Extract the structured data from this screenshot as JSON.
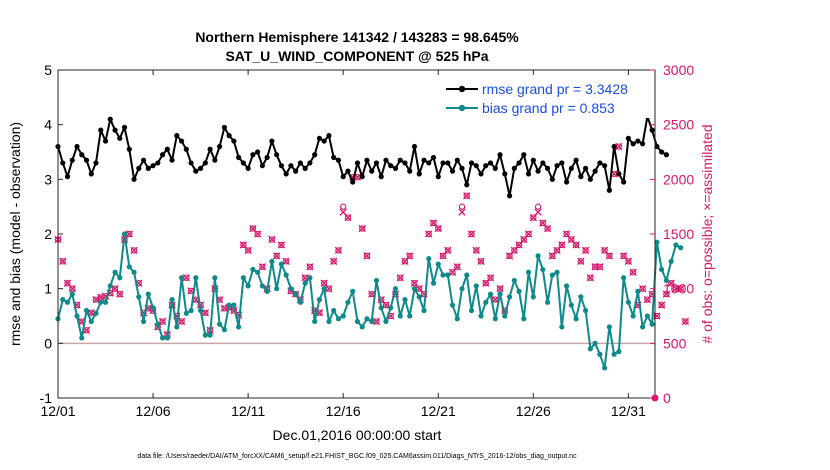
{
  "chart_data": {
    "type": "line",
    "title_line1": "Northern Hemisphere 141342 / 143283 = 98.645%",
    "title_line2": "SAT_U_WIND_COMPONENT @ 525 hPa",
    "xlabel": "Dec.01,2016 00:00:00 start",
    "ylabel": "rmse and bias (model - observation)",
    "y2label": "# of obs: o=possible; ×=assimilated",
    "footnote": "data file: /Users/raeder/DAI/ATM_forcXX/CAM6_setup/f.e21.FHIST_BGC.f09_025.CAM6assim.011/Diags_NTrS_2016-12/obs_diag_output.nc",
    "xlim": [
      0,
      31.4
    ],
    "ylim": [
      -1,
      5
    ],
    "y2lim": [
      0,
      3000
    ],
    "x_ticks": [
      0,
      5,
      10,
      15,
      20,
      25,
      30
    ],
    "x_tick_labels": [
      "12/01",
      "12/06",
      "12/11",
      "12/16",
      "12/21",
      "12/26",
      "12/31"
    ],
    "y_ticks": [
      -1,
      0,
      1,
      2,
      3,
      4,
      5
    ],
    "y_tick_labels": [
      "-1",
      "0",
      "1",
      "2",
      "3",
      "4",
      "5"
    ],
    "y2_ticks": [
      0,
      500,
      1000,
      1500,
      2000,
      2500,
      3000
    ],
    "y2_tick_labels": [
      "0",
      "500",
      "1000",
      "1500",
      "2000",
      "2500",
      "3000"
    ],
    "zero_line": 0,
    "step_days": 0.25,
    "legend": {
      "rmse_label": "rmse grand pr = 3.3428",
      "bias_label": "bias grand pr = 0.853",
      "placement": "top-right"
    },
    "colors": {
      "rmse": "#000000",
      "bias": "#0f8a8a",
      "obs": "#d6176a",
      "legend_text": "#1a4fe0",
      "zero_line": "#c6a6a6"
    },
    "series": [
      {
        "name": "rmse grand pr",
        "values": [
          3.6,
          3.3,
          3.05,
          3.35,
          3.6,
          3.45,
          3.35,
          3.1,
          3.3,
          3.9,
          3.7,
          4.1,
          3.9,
          3.75,
          3.95,
          3.55,
          3.0,
          3.2,
          3.35,
          3.2,
          3.25,
          3.3,
          3.45,
          3.55,
          3.35,
          3.8,
          3.7,
          3.55,
          3.3,
          3.15,
          3.2,
          3.3,
          3.55,
          3.35,
          3.6,
          3.95,
          3.8,
          3.7,
          3.4,
          3.3,
          3.2,
          3.45,
          3.5,
          3.25,
          3.4,
          3.7,
          3.45,
          3.25,
          3.1,
          3.25,
          3.15,
          3.3,
          3.2,
          3.3,
          3.45,
          3.75,
          3.7,
          3.8,
          3.4,
          3.35,
          3.05,
          3.15,
          2.95,
          3.3,
          3.05,
          3.35,
          3.15,
          3.3,
          3.05,
          3.35,
          3.25,
          3.2,
          3.35,
          3.3,
          3.15,
          3.6,
          3.1,
          3.35,
          3.3,
          3.4,
          3.05,
          3.3,
          3.3,
          3.15,
          3.35,
          3.2,
          2.9,
          3.3,
          3.25,
          3.1,
          3.25,
          3.3,
          3.2,
          3.45,
          3.1,
          2.7,
          3.2,
          3.3,
          3.45,
          3.1,
          3.35,
          3.15,
          3.3,
          3.2,
          3.0,
          3.25,
          3.3,
          2.95,
          3.2,
          3.35,
          3.05,
          3.2,
          3.0,
          3.15,
          3.3,
          3.25,
          2.8,
          3.6,
          3.1,
          2.95,
          3.75,
          3.65,
          3.7,
          3.65,
          4.15,
          3.9,
          3.6,
          3.5,
          3.45
        ],
        "color": "#000000"
      },
      {
        "name": "bias grand pr",
        "values": [
          0.45,
          0.8,
          0.75,
          0.9,
          0.5,
          0.1,
          0.6,
          0.4,
          0.55,
          0.75,
          0.75,
          1.05,
          1.3,
          1.2,
          2.0,
          1.4,
          1.3,
          0.85,
          0.4,
          0.9,
          0.65,
          0.35,
          0.1,
          0.1,
          0.8,
          0.3,
          1.2,
          0.55,
          0.6,
          1.2,
          0.6,
          0.15,
          0.15,
          1.2,
          0.35,
          0.25,
          0.7,
          0.7,
          0.3,
          1.2,
          1.05,
          1.35,
          1.3,
          1.05,
          0.95,
          1.5,
          1.0,
          1.45,
          1.25,
          1.0,
          0.9,
          0.75,
          1.1,
          1.2,
          0.4,
          0.8,
          1.0,
          0.4,
          0.6,
          0.45,
          0.5,
          0.75,
          0.95,
          0.4,
          0.3,
          0.45,
          0.4,
          1.15,
          0.65,
          0.4,
          0.65,
          1.0,
          0.5,
          0.8,
          0.5,
          1.0,
          0.85,
          0.6,
          1.55,
          1.1,
          1.45,
          1.25,
          1.25,
          0.7,
          0.45,
          1.0,
          1.25,
          0.6,
          1.05,
          0.5,
          0.75,
          0.9,
          0.45,
          0.9,
          0.5,
          0.85,
          1.15,
          0.95,
          0.45,
          1.3,
          0.85,
          1.6,
          1.35,
          0.75,
          1.25,
          1.3,
          0.3,
          1.05,
          0.7,
          0.45,
          0.85,
          0.6,
          -0.1,
          0.0,
          -0.2,
          -0.45,
          0.3,
          -0.2,
          -0.15,
          1.2,
          0.75,
          0.5,
          0.95,
          0.3,
          0.5,
          0.35,
          1.85,
          1.35,
          1.15,
          1.5,
          1.8,
          1.75
        ],
        "color": "#0f8a8a"
      },
      {
        "name": "# of obs (assimilated)",
        "axis": "right",
        "values": [
          1450,
          1250,
          1050,
          1000,
          850,
          700,
          620,
          780,
          900,
          920,
          930,
          960,
          1000,
          950,
          1450,
          1500,
          1350,
          1050,
          780,
          820,
          800,
          650,
          700,
          580,
          850,
          750,
          700,
          1100,
          980,
          900,
          850,
          780,
          620,
          1000,
          900,
          820,
          830,
          800,
          760,
          1400,
          1350,
          1550,
          1500,
          1200,
          1000,
          1450,
          1300,
          1400,
          1250,
          980,
          950,
          900,
          1100,
          1200,
          800,
          780,
          1050,
          1000,
          1250,
          1350,
          1700,
          1650,
          2020,
          2020,
          1550,
          1300,
          950,
          700,
          900,
          850,
          750,
          950,
          1100,
          1250,
          1300,
          1050,
          1000,
          950,
          1500,
          1600,
          1550,
          1300,
          1350,
          1150,
          1200,
          1700,
          1850,
          1500,
          1350,
          1250,
          1050,
          1100,
          900,
          1000,
          800,
          1300,
          1350,
          1400,
          1450,
          1500,
          1650,
          1700,
          1600,
          1550,
          1300,
          1350,
          1400,
          1500,
          1450,
          1400,
          1250,
          1350,
          1100,
          1200,
          1200,
          1350,
          1300,
          2050,
          2300,
          1300,
          1250,
          1150,
          850,
          1000,
          900,
          950,
          750,
          850,
          950,
          1050,
          1000,
          1000,
          700
        ],
        "color": "#d6176a"
      },
      {
        "name": "# of obs (possible)",
        "axis": "right",
        "values": [
          1450,
          1250,
          1050,
          1000,
          850,
          700,
          620,
          780,
          900,
          920,
          930,
          960,
          1000,
          950,
          1450,
          1500,
          1350,
          1050,
          780,
          820,
          800,
          650,
          700,
          580,
          850,
          750,
          700,
          1100,
          980,
          900,
          850,
          780,
          620,
          1000,
          900,
          820,
          830,
          800,
          760,
          1400,
          1350,
          1550,
          1500,
          1200,
          1000,
          1450,
          1300,
          1400,
          1250,
          980,
          950,
          900,
          1100,
          1200,
          800,
          780,
          1050,
          1000,
          1250,
          1350,
          1750,
          1650,
          2020,
          2020,
          1550,
          1300,
          950,
          700,
          900,
          850,
          750,
          950,
          1100,
          1250,
          1300,
          1050,
          1000,
          950,
          1500,
          1600,
          1550,
          1300,
          1350,
          1150,
          1200,
          1750,
          1850,
          1500,
          1350,
          1250,
          1050,
          1100,
          900,
          1000,
          800,
          1300,
          1350,
          1400,
          1450,
          1500,
          1650,
          1750,
          1600,
          1550,
          1300,
          1350,
          1400,
          1500,
          1450,
          1400,
          1250,
          1350,
          1100,
          1200,
          1200,
          1350,
          1300,
          2050,
          2300,
          1300,
          1250,
          1150,
          850,
          1000,
          900,
          950,
          750,
          850,
          950,
          1050,
          1000,
          1000,
          700
        ],
        "color": "#d6176a"
      }
    ]
  }
}
